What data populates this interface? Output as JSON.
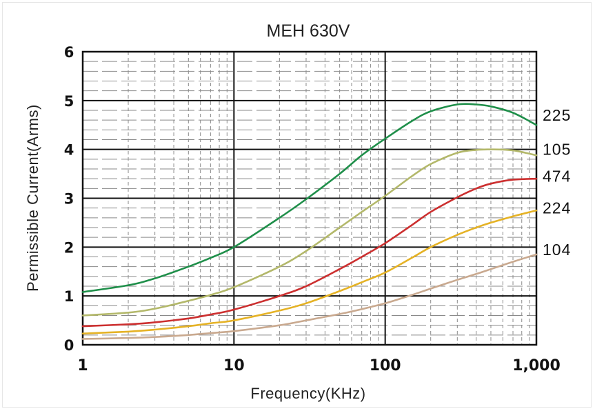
{
  "chart_data": {
    "type": "line",
    "title": "MEH 630V",
    "xlabel": "Frequency(KHz)",
    "ylabel": "Permissible Current(Arms)",
    "x_scale": "log",
    "xlim": [
      1,
      1000
    ],
    "ylim": [
      0,
      6
    ],
    "x_ticks": [
      {
        "value": 1,
        "label": "1"
      },
      {
        "value": 10,
        "label": "10"
      },
      {
        "value": 100,
        "label": "100"
      },
      {
        "value": 1000,
        "label": "1,000"
      }
    ],
    "y_ticks": [
      {
        "value": 0,
        "label": "0"
      },
      {
        "value": 1,
        "label": "1"
      },
      {
        "value": 2,
        "label": "2"
      },
      {
        "value": 3,
        "label": "3"
      },
      {
        "value": 4,
        "label": "4"
      },
      {
        "value": 5,
        "label": "5"
      },
      {
        "value": 6,
        "label": "6"
      }
    ],
    "grid": true,
    "legend": "right-side labels at line ends",
    "series": [
      {
        "name": "225",
        "color": "#1f8f4a",
        "x": [
          1,
          2,
          3,
          5,
          7,
          10,
          20,
          30,
          50,
          70,
          100,
          150,
          200,
          300,
          400,
          500,
          700,
          1000
        ],
        "y": [
          1.08,
          1.22,
          1.36,
          1.6,
          1.78,
          2.0,
          2.6,
          2.98,
          3.5,
          3.88,
          4.22,
          4.58,
          4.78,
          4.92,
          4.92,
          4.88,
          4.75,
          4.5
        ]
      },
      {
        "name": "105",
        "color": "#b3b86a",
        "x": [
          1,
          2,
          3,
          5,
          7,
          10,
          20,
          30,
          50,
          70,
          100,
          150,
          200,
          300,
          400,
          500,
          700,
          1000
        ],
        "y": [
          0.6,
          0.66,
          0.74,
          0.9,
          1.02,
          1.18,
          1.6,
          1.92,
          2.4,
          2.72,
          3.05,
          3.45,
          3.7,
          3.93,
          3.99,
          4.0,
          3.98,
          3.88
        ]
      },
      {
        "name": "474",
        "color": "#cc2f2f",
        "x": [
          1,
          2,
          3,
          5,
          7,
          10,
          20,
          30,
          50,
          70,
          100,
          150,
          200,
          300,
          400,
          500,
          700,
          1000
        ],
        "y": [
          0.38,
          0.42,
          0.46,
          0.54,
          0.62,
          0.72,
          1.0,
          1.2,
          1.55,
          1.8,
          2.08,
          2.45,
          2.72,
          3.02,
          3.2,
          3.3,
          3.38,
          3.4
        ]
      },
      {
        "name": "224",
        "color": "#e5b225",
        "x": [
          1,
          2,
          3,
          5,
          7,
          10,
          20,
          30,
          50,
          70,
          100,
          150,
          200,
          300,
          400,
          500,
          700,
          1000
        ],
        "y": [
          0.23,
          0.27,
          0.31,
          0.38,
          0.44,
          0.5,
          0.7,
          0.85,
          1.1,
          1.28,
          1.48,
          1.78,
          2.0,
          2.25,
          2.4,
          2.5,
          2.63,
          2.75
        ]
      },
      {
        "name": "104",
        "color": "#c9a98f",
        "x": [
          1,
          2,
          3,
          5,
          7,
          10,
          20,
          30,
          50,
          70,
          100,
          150,
          200,
          300,
          400,
          500,
          700,
          1000
        ],
        "y": [
          0.12,
          0.14,
          0.16,
          0.2,
          0.24,
          0.28,
          0.4,
          0.5,
          0.63,
          0.73,
          0.85,
          1.02,
          1.15,
          1.33,
          1.45,
          1.55,
          1.7,
          1.85
        ]
      }
    ],
    "series_label_positions": [
      {
        "name": "225",
        "y": 4.7
      },
      {
        "name": "105",
        "y": 4.0
      },
      {
        "name": "474",
        "y": 3.45
      },
      {
        "name": "224",
        "y": 2.8
      },
      {
        "name": "104",
        "y": 1.95
      }
    ]
  }
}
